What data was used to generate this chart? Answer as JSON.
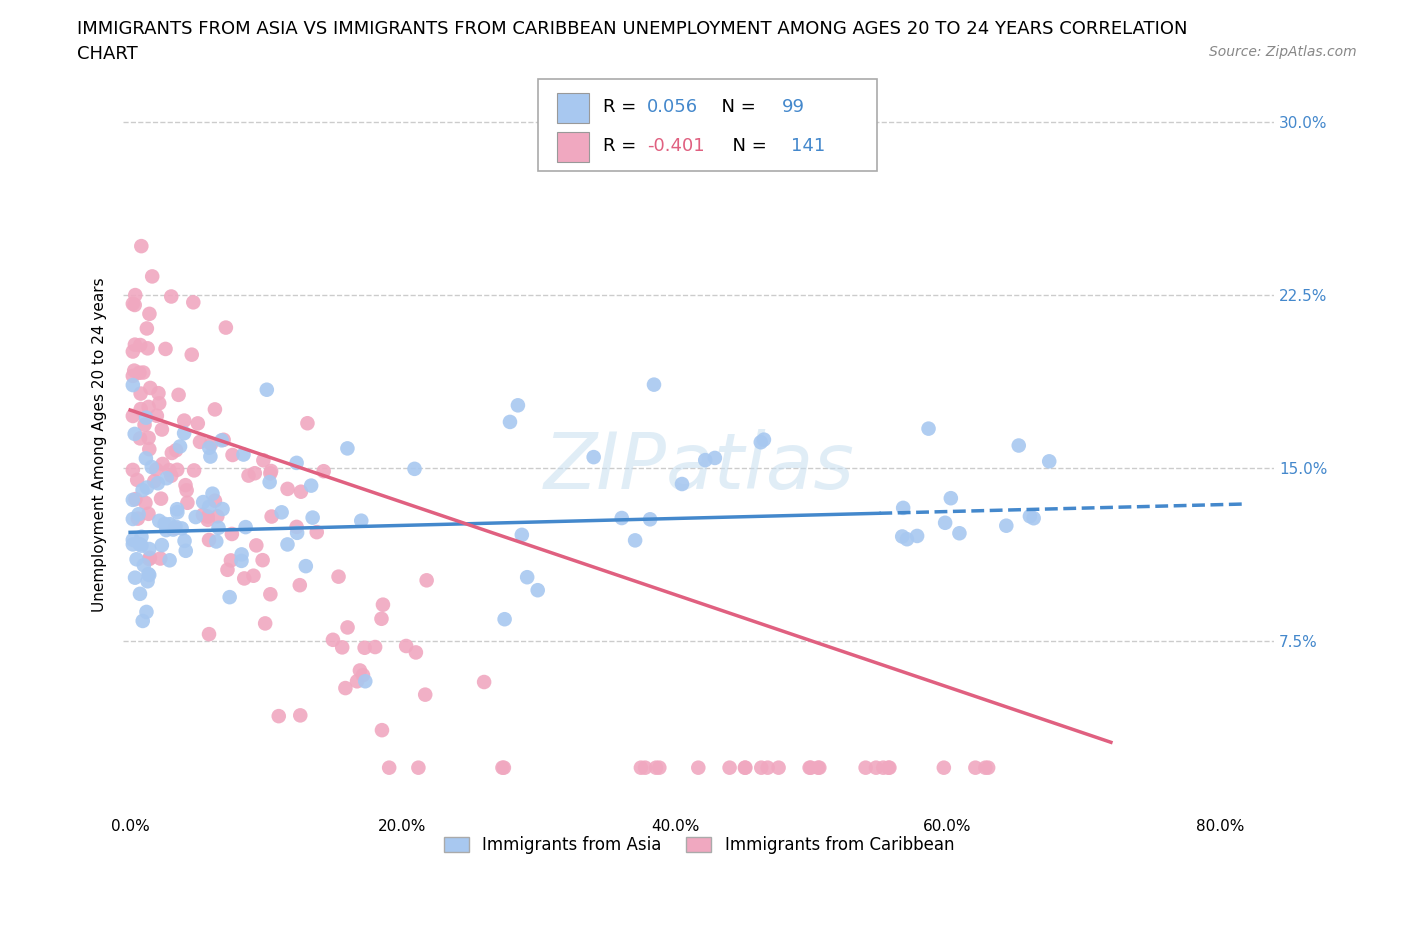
{
  "title_line1": "IMMIGRANTS FROM ASIA VS IMMIGRANTS FROM CARIBBEAN UNEMPLOYMENT AMONG AGES 20 TO 24 YEARS CORRELATION",
  "title_line2": "CHART",
  "source_text": "Source: ZipAtlas.com",
  "ylabel": "Unemployment Among Ages 20 to 24 years",
  "xticklabels": [
    "0.0%",
    "20.0%",
    "40.0%",
    "60.0%",
    "80.0%"
  ],
  "xticks": [
    0.0,
    0.2,
    0.4,
    0.6,
    0.8
  ],
  "yticks": [
    0.075,
    0.15,
    0.225,
    0.3
  ],
  "yticklabels": [
    "7.5%",
    "15.0%",
    "22.5%",
    "30.0%"
  ],
  "ylim": [
    0.0,
    0.32
  ],
  "xlim": [
    -0.005,
    0.84
  ],
  "asia_color": "#a8c8f0",
  "caribbean_color": "#f0a8c0",
  "asia_line_color": "#4488cc",
  "caribbean_line_color": "#e06080",
  "legend_label_asia": "Immigrants from Asia",
  "legend_label_caribbean": "Immigrants from Caribbean",
  "watermark_text": "ZIPatlas",
  "R_asia": 0.056,
  "N_asia": 99,
  "R_caribbean": -0.401,
  "N_caribbean": 141,
  "title_fontsize": 13,
  "axis_label_fontsize": 11,
  "tick_fontsize": 11,
  "background_color": "#ffffff",
  "grid_color": "#cccccc",
  "right_tick_color": "#4488cc"
}
